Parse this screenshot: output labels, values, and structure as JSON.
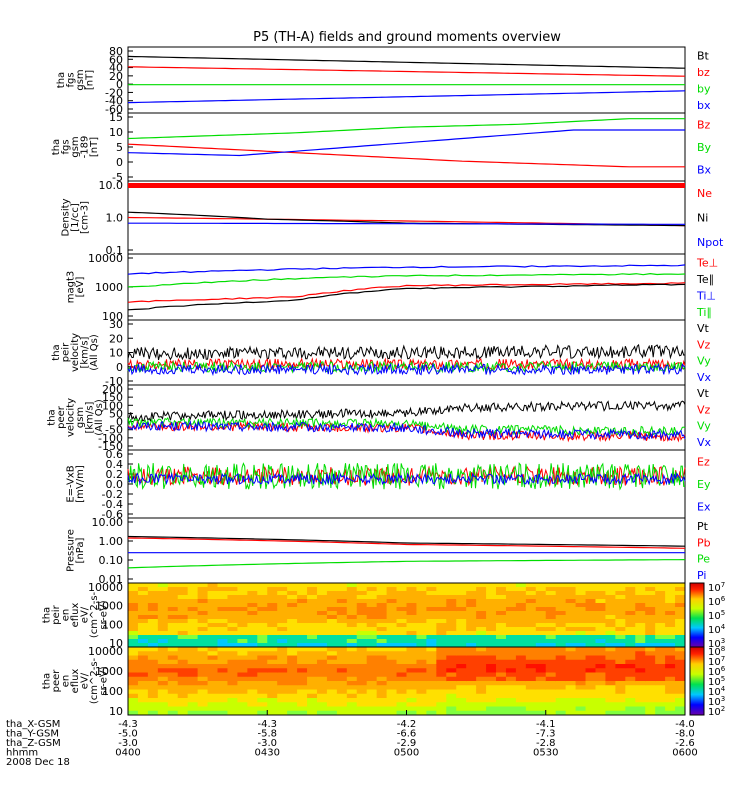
{
  "title": "P5 (TH-A) fields and ground moments overview",
  "colors": {
    "black": "#000000",
    "red": "#ff0000",
    "green": "#00dd00",
    "blue": "#0000ff"
  },
  "chart_data": [
    {
      "type": "line",
      "ylabel": [
        "tha",
        "fgs",
        "gsm",
        "[nT]"
      ],
      "yticks": [
        "80",
        "60",
        "40",
        "20",
        "0",
        "-20",
        "-40",
        "-60"
      ],
      "ylim": [
        -60,
        80
      ],
      "series": [
        {
          "name": "Bt",
          "color": "black",
          "values": [
            [
              0,
              60
            ],
            [
              1,
              35
            ],
            [
              1,
              35
            ]
          ]
        },
        {
          "name": "bz",
          "color": "red",
          "values": [
            [
              0,
              38
            ],
            [
              1,
              18
            ]
          ]
        },
        {
          "name": "by",
          "color": "green",
          "values": [
            [
              0,
              0
            ],
            [
              1,
              0
            ]
          ]
        },
        {
          "name": "bx",
          "color": "blue",
          "values": [
            [
              0,
              -38
            ],
            [
              1,
              -13
            ]
          ]
        }
      ]
    },
    {
      "type": "line",
      "ylabel": [
        "tha",
        "fgs",
        "gsm",
        "-189",
        "[nT]"
      ],
      "yticks": [
        "15",
        "10",
        "5",
        "0",
        "-5"
      ],
      "ylim": [
        -7,
        17
      ],
      "series": [
        {
          "name": "Bz",
          "color": "red",
          "values": [
            [
              0,
              6
            ],
            [
              0.3,
              3
            ],
            [
              0.6,
              0
            ],
            [
              0.9,
              -2
            ],
            [
              1,
              -2
            ]
          ]
        },
        {
          "name": "By",
          "color": "green",
          "values": [
            [
              0,
              8
            ],
            [
              0.3,
              10
            ],
            [
              0.5,
              12
            ],
            [
              0.7,
              13
            ],
            [
              0.9,
              15
            ],
            [
              1,
              15
            ]
          ]
        },
        {
          "name": "Bx",
          "color": "blue",
          "values": [
            [
              0,
              3
            ],
            [
              0.2,
              2
            ],
            [
              0.4,
              5
            ],
            [
              0.6,
              8
            ],
            [
              0.8,
              11
            ],
            [
              1,
              11
            ]
          ]
        }
      ]
    },
    {
      "type": "line",
      "log": true,
      "ylabel": [
        "Density",
        "[1/cc]",
        "[cm-3]"
      ],
      "yticks": [
        "10.0",
        "1.0",
        "0.1"
      ],
      "ylim": [
        0.1,
        10
      ],
      "series": [
        {
          "name": "Ne",
          "color": "red",
          "values": [
            [
              0,
              1.0
            ],
            [
              0.5,
              0.8
            ],
            [
              1,
              0.6
            ]
          ]
        },
        {
          "name": "Ni",
          "color": "black",
          "values": [
            [
              0,
              1.4
            ],
            [
              0.25,
              0.9
            ],
            [
              0.5,
              0.7
            ],
            [
              1,
              0.6
            ]
          ]
        },
        {
          "name": "Npot",
          "color": "blue",
          "values": [
            [
              0,
              0.7
            ],
            [
              1,
              0.65
            ]
          ]
        }
      ]
    },
    {
      "type": "line",
      "log": true,
      "ylabel": [
        "magt3",
        "[eV]"
      ],
      "yticks": [
        "10000",
        "1000",
        "100"
      ],
      "ylim": [
        100,
        10000
      ],
      "series": [
        {
          "name": "Te⊥",
          "color": "red",
          "values": [
            [
              0,
              350
            ],
            [
              0.3,
              500
            ],
            [
              0.5,
              1100
            ],
            [
              1,
              1300
            ]
          ]
        },
        {
          "name": "Te∥",
          "color": "black",
          "values": [
            [
              0,
              200
            ],
            [
              0.3,
              400
            ],
            [
              0.5,
              900
            ],
            [
              1,
              1200
            ]
          ]
        },
        {
          "name": "Ti⊥",
          "color": "blue",
          "values": [
            [
              0,
              2500
            ],
            [
              0.3,
              3500
            ],
            [
              0.5,
              4000
            ],
            [
              1,
              4500
            ]
          ]
        },
        {
          "name": "Ti∥",
          "color": "green",
          "values": [
            [
              0,
              1000
            ],
            [
              0.3,
              1800
            ],
            [
              0.5,
              2200
            ],
            [
              1,
              2500
            ]
          ]
        }
      ]
    },
    {
      "type": "line",
      "noisy": true,
      "ylabel": [
        "tha",
        "peir",
        "velocity",
        "[km/s]",
        "(All Qs)"
      ],
      "yticks": [
        "30",
        "20",
        "10",
        "0",
        "-10"
      ],
      "ylim": [
        -14,
        36
      ],
      "series": [
        {
          "name": "Vt",
          "color": "black",
          "values": [
            [
              0,
              10
            ],
            [
              1,
              12
            ]
          ],
          "noise": 5
        },
        {
          "name": "Vz",
          "color": "red",
          "values": [
            [
              0,
              2
            ],
            [
              1,
              2
            ]
          ],
          "noise": 4
        },
        {
          "name": "Vy",
          "color": "green",
          "values": [
            [
              0,
              0
            ],
            [
              1,
              0
            ]
          ],
          "noise": 4
        },
        {
          "name": "Vx",
          "color": "blue",
          "values": [
            [
              0,
              -2
            ],
            [
              1,
              -2
            ]
          ],
          "noise": 4
        }
      ]
    },
    {
      "type": "line",
      "noisy": true,
      "ylabel": [
        "tha",
        "peer",
        "velocity",
        "gsm",
        "[km/s]",
        "(All Qs)"
      ],
      "yticks": [
        "200",
        "150",
        "100",
        "50",
        "0",
        "-50",
        "-100",
        "-150"
      ],
      "ylim": [
        -150,
        200
      ],
      "series": [
        {
          "name": "Vt",
          "color": "black",
          "values": [
            [
              0,
              30
            ],
            [
              0.5,
              50
            ],
            [
              0.6,
              80
            ],
            [
              1,
              90
            ]
          ],
          "noise": 25
        },
        {
          "name": "Vz",
          "color": "red",
          "values": [
            [
              0,
              -20
            ],
            [
              0.5,
              -30
            ],
            [
              0.6,
              -70
            ],
            [
              1,
              -80
            ]
          ],
          "noise": 25
        },
        {
          "name": "Vy",
          "color": "green",
          "values": [
            [
              0,
              0
            ],
            [
              0.5,
              -10
            ],
            [
              0.6,
              -40
            ],
            [
              1,
              -50
            ]
          ],
          "noise": 25
        },
        {
          "name": "Vx",
          "color": "blue",
          "values": [
            [
              0,
              -20
            ],
            [
              0.5,
              -30
            ],
            [
              0.6,
              -60
            ],
            [
              1,
              -70
            ]
          ],
          "noise": 25
        }
      ]
    },
    {
      "type": "line",
      "noisy": true,
      "ylabel": [
        "E=-VxB",
        "[mV/m]"
      ],
      "yticks": [
        "0.6",
        "0.4",
        "0.2",
        "0.0",
        "-0.2",
        "-0.4",
        "-0.6"
      ],
      "ylim": [
        -0.7,
        0.6
      ],
      "series": [
        {
          "name": "Ez",
          "color": "red",
          "values": [
            [
              0,
              0.1
            ],
            [
              1,
              0.1
            ]
          ],
          "noise": 0.18
        },
        {
          "name": "Ey",
          "color": "green",
          "values": [
            [
              0,
              0.1
            ],
            [
              1,
              0.1
            ]
          ],
          "noise": 0.25
        },
        {
          "name": "Ex",
          "color": "blue",
          "values": [
            [
              0,
              0.05
            ],
            [
              1,
              0.05
            ]
          ],
          "noise": 0.1
        }
      ]
    },
    {
      "type": "line",
      "log": true,
      "ylabel": [
        "Pressure",
        "[nPa]"
      ],
      "yticks": [
        "10.00",
        "1.00",
        "0.10",
        "0.01"
      ],
      "ylim": [
        0.01,
        10
      ],
      "series": [
        {
          "name": "Pt",
          "color": "black",
          "values": [
            [
              0,
              1.4
            ],
            [
              0.5,
              0.7
            ],
            [
              1,
              0.5
            ]
          ]
        },
        {
          "name": "Pb",
          "color": "red",
          "values": [
            [
              0,
              1.2
            ],
            [
              0.5,
              0.6
            ],
            [
              1,
              0.4
            ]
          ]
        },
        {
          "name": "Pe",
          "color": "green",
          "values": [
            [
              0,
              0.05
            ],
            [
              0.5,
              0.1
            ],
            [
              1,
              0.12
            ]
          ]
        },
        {
          "name": "Pi",
          "color": "blue",
          "values": [
            [
              0,
              0.25
            ],
            [
              1,
              0.25
            ]
          ]
        }
      ]
    },
    {
      "type": "heatmap",
      "ylabel": [
        "tha",
        "peir",
        "en",
        "eflux",
        "eV/",
        "(cm^2-s-",
        "sr-eV)"
      ],
      "yticks": [
        "10000",
        "1000",
        "100",
        "10"
      ],
      "ylim": [
        5,
        25000
      ],
      "colorbar_labels": [
        "10^7",
        "10^6",
        "10^5",
        "10^4",
        "10^3"
      ]
    },
    {
      "type": "heatmap",
      "ylabel": [
        "tha",
        "peer",
        "en",
        "eflux",
        "eV/",
        "(cm^2-s-",
        "sr-eV)"
      ],
      "yticks": [
        "10000",
        "1000",
        "100",
        "10"
      ],
      "ylim": [
        5,
        25000
      ],
      "colorbar_labels": [
        "10^8",
        "10^7",
        "10^6",
        "10^5",
        "10^4",
        "10^3",
        "10^2"
      ]
    }
  ],
  "ephemeris": {
    "rows": [
      {
        "label": "tha_X-GSM",
        "values": [
          "-4.3",
          "-4.3",
          "-4.2",
          "-4.1",
          "-4.0"
        ]
      },
      {
        "label": "tha_Y-GSM",
        "values": [
          "-5.0",
          "-5.8",
          "-6.6",
          "-7.3",
          "-8.0"
        ]
      },
      {
        "label": "tha_Z-GSM",
        "values": [
          "-3.0",
          "-3.0",
          "-2.9",
          "-2.8",
          "-2.6"
        ]
      },
      {
        "label": "hhmm",
        "values": [
          "0400",
          "0430",
          "0500",
          "0530",
          "0600"
        ]
      }
    ],
    "date": "2008 Dec 18"
  }
}
